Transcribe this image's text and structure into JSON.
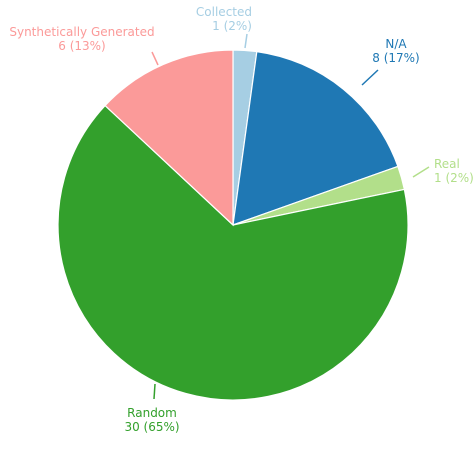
{
  "chart_data": {
    "type": "pie",
    "title": "",
    "start_angle_deg": 0,
    "direction": "clockwise",
    "slices": [
      {
        "label": "Collected",
        "value": 1,
        "percent_label": "2%",
        "color": "#a6cee3"
      },
      {
        "label": "N/A",
        "value": 8,
        "percent_label": "17%",
        "color": "#1f78b4"
      },
      {
        "label": "Real",
        "value": 1,
        "percent_label": "2%",
        "color": "#b2df8a"
      },
      {
        "label": "Random",
        "value": 30,
        "percent_label": "65%",
        "color": "#33a02c"
      },
      {
        "label": "Synthetically Generated",
        "value": 6,
        "percent_label": "13%",
        "color": "#fb9a99"
      }
    ]
  }
}
